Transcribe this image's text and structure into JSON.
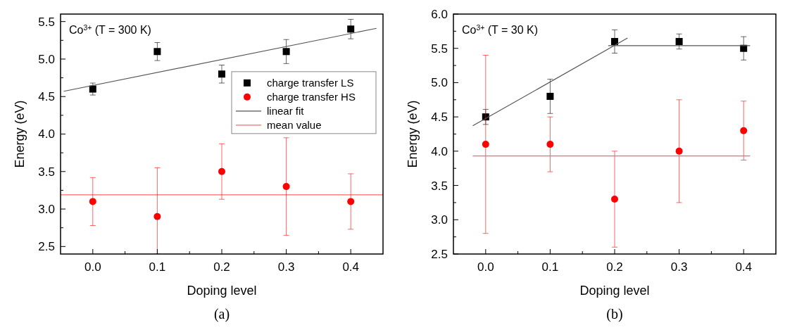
{
  "chart_data": [
    {
      "type": "scatter",
      "xlabel": "Doping level",
      "ylabel": "Energy (eV)",
      "annotations": [
        "Co$^{3+}$ (T = 300 K)",
        "(a)"
      ],
      "xlim": [
        -0.05,
        0.45
      ],
      "ylim": [
        2.4,
        5.6
      ],
      "xticks": [
        {
          "value": 0,
          "label": "0.0"
        },
        {
          "value": 0.05,
          "label": null
        },
        0.1,
        {
          "value": 0.15,
          "label": null
        },
        0.2,
        {
          "value": 0.25,
          "label": null
        },
        0.3,
        {
          "value": 0.35,
          "label": null
        },
        0.4
      ],
      "yticks": [
        2.5,
        {
          "value": 2.75,
          "label": null
        },
        {
          "value": 3,
          "label": "3.0"
        },
        {
          "value": 3.25,
          "label": null
        },
        3.5,
        {
          "value": 3.75,
          "label": null
        },
        {
          "value": 4,
          "label": "4.0"
        },
        {
          "value": 4.25,
          "label": null
        },
        4.5,
        {
          "value": 4.75,
          "label": null
        },
        {
          "value": 5,
          "label": "5.0"
        },
        {
          "value": 5.25,
          "label": null
        },
        5.5
      ],
      "legend": "right",
      "series": [
        {
          "name": "charge transfer LS",
          "color": "#000000",
          "marker": "square",
          "x": [
            0,
            0.1,
            0.2,
            0.3,
            0.4
          ],
          "values": [
            4.6,
            5.1,
            4.8,
            5.1,
            5.4
          ],
          "errors": [
            0.08,
            0.12,
            0.12,
            0.16,
            0.13
          ]
        },
        {
          "name": "charge transfer HS",
          "color": "#ff0000",
          "marker": "circle",
          "x": [
            0,
            0.1,
            0.2,
            0.3,
            0.4
          ],
          "values": [
            3.1,
            2.9,
            3.5,
            3.3,
            3.1
          ],
          "errors": [
            0.32,
            [
              2.4,
              3.55
            ],
            0.37,
            [
              2.65,
              3.95
            ],
            0.37
          ]
        },
        {
          "name": "linear fit",
          "type": "line",
          "color": "#555555",
          "x": [
            -0.045,
            0.44
          ],
          "values": [
            4.57,
            5.41
          ]
        }
      ],
      "ref_lines": [
        {
          "axis": "y",
          "value": 3.19,
          "label": "mean value",
          "color": "#ff6666"
        }
      ]
    },
    {
      "type": "scatter",
      "xlabel": "Doping level",
      "ylabel": "Energy (eV)",
      "annotations": [
        "Co$^{3+}$ (T = 30 K)",
        "(b)"
      ],
      "xlim": [
        -0.05,
        0.45
      ],
      "ylim": [
        2.5,
        6.0
      ],
      "xticks": [
        {
          "value": 0,
          "label": "0.0"
        },
        {
          "value": 0.05,
          "label": null
        },
        0.1,
        {
          "value": 0.15,
          "label": null
        },
        0.2,
        {
          "value": 0.25,
          "label": null
        },
        0.3,
        {
          "value": 0.35,
          "label": null
        },
        0.4
      ],
      "yticks": [
        2.5,
        {
          "value": 2.75,
          "label": null
        },
        {
          "value": 3,
          "label": "3.0"
        },
        {
          "value": 3.25,
          "label": null
        },
        3.5,
        {
          "value": 3.75,
          "label": null
        },
        {
          "value": 4,
          "label": "4.0"
        },
        {
          "value": 4.25,
          "label": null
        },
        4.5,
        {
          "value": 4.75,
          "label": null
        },
        {
          "value": 5,
          "label": "5.0"
        },
        {
          "value": 5.25,
          "label": null
        },
        5.5,
        {
          "value": 5.75,
          "label": null
        },
        {
          "value": 6,
          "label": "6.0"
        }
      ],
      "series": [
        {
          "color": "#000000",
          "marker": "square",
          "x": [
            0,
            0.1,
            0.2,
            0.3,
            0.4
          ],
          "values": [
            4.5,
            4.8,
            5.6,
            5.6,
            5.5
          ],
          "errors": [
            0.11,
            0.25,
            0.17,
            0.11,
            0.17
          ]
        },
        {
          "color": "#ff0000",
          "marker": "circle",
          "x": [
            0,
            0.1,
            0.2,
            0.3,
            0.4
          ],
          "values": [
            4.1,
            4.1,
            3.3,
            4.0,
            4.3
          ],
          "errors": [
            [
              2.8,
              5.4
            ],
            0.4,
            [
              2.6,
              4.0
            ],
            [
              3.25,
              4.75
            ],
            [
              3.87,
              4.73
            ]
          ]
        },
        {
          "type": "line",
          "color": "#555555",
          "x": [
            -0.02,
            0.22
          ],
          "values": [
            4.37,
            5.65
          ]
        },
        {
          "type": "line",
          "color": "#555555",
          "x": [
            0.19,
            0.41
          ],
          "values": [
            5.54,
            5.54
          ]
        },
        {
          "type": "line",
          "color": "#ff6666",
          "x": [
            -0.02,
            0.41
          ],
          "values": [
            3.93,
            3.93
          ]
        }
      ]
    }
  ]
}
